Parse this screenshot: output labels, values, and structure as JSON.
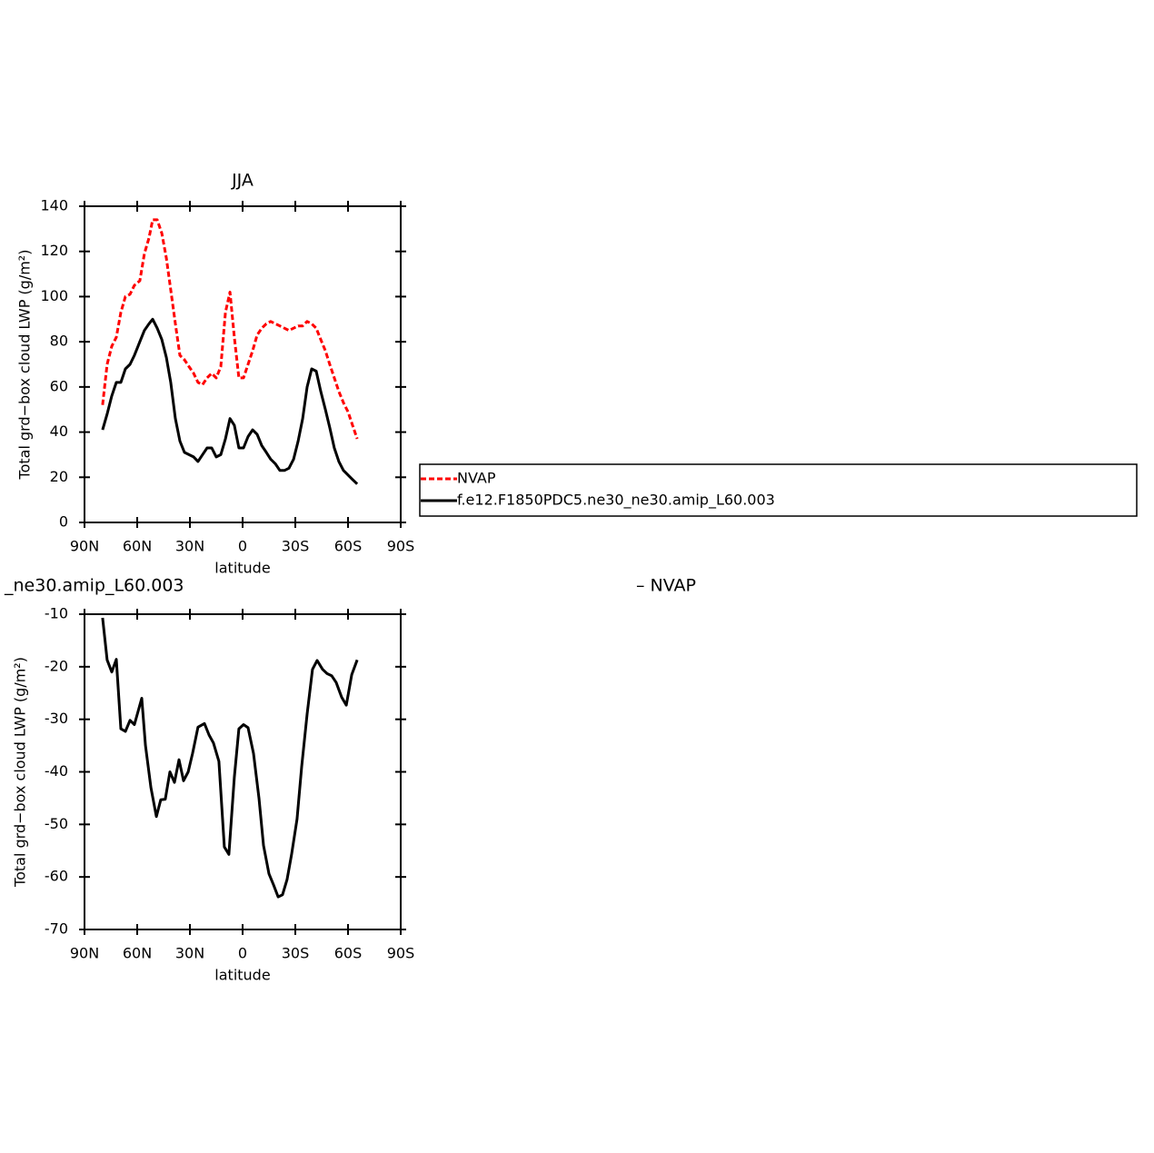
{
  "chart_data": [
    {
      "type": "line",
      "title": "JJA",
      "xlabel": "latitude",
      "ylabel": "Total grd−box cloud LWP (g/m²)",
      "x": [
        79.7,
        77.1,
        74.5,
        71.9,
        69.3,
        66.7,
        64.1,
        61.6,
        58.5,
        55.9,
        53.3,
        51.2,
        48.6,
        46.0,
        43.4,
        40.9,
        38.3,
        35.7,
        33.1,
        30.5,
        27.9,
        25.4,
        22.8,
        20.2,
        17.6,
        15.0,
        12.4,
        9.8,
        7.2,
        4.7,
        2.1,
        -0.5,
        -3.1,
        -5.7,
        -8.3,
        -10.9,
        -13.5,
        -16.0,
        -18.6,
        -21.2,
        -23.8,
        -26.4,
        -29.0,
        -31.6,
        -34.2,
        -36.7,
        -39.3,
        -41.9,
        -44.5,
        -47.1,
        -49.6,
        -52.2,
        -54.8,
        -57.4,
        -60.0,
        -62.6,
        -65.2
      ],
      "series": [
        {
          "name": "NVAP",
          "color": "#ff0000",
          "line_style": "dashed",
          "values": [
            52,
            70,
            78,
            82,
            93,
            100,
            101,
            105,
            107,
            119,
            126,
            134,
            134,
            128,
            117,
            103,
            88,
            74,
            72,
            69,
            66,
            62,
            61,
            64,
            66,
            64,
            69,
            93,
            102,
            82,
            64,
            64,
            70,
            76,
            83,
            86,
            88,
            89,
            88,
            87,
            86,
            85,
            86,
            87,
            87,
            89,
            88,
            86,
            81,
            76,
            70,
            64,
            58,
            53,
            49,
            43,
            37
          ]
        },
        {
          "name": "f.e12.F1850PDC5.ne30_ne30.amip_L60.003",
          "color": "#000000",
          "line_style": "solid",
          "values": [
            41,
            48,
            56,
            62,
            62,
            68,
            70,
            74,
            80,
            85,
            88,
            90,
            86,
            81,
            73,
            62,
            46,
            36,
            31,
            30,
            29,
            27,
            30,
            33,
            33,
            29,
            30,
            37,
            46,
            43,
            33,
            33,
            38,
            41,
            39,
            34,
            31,
            28,
            26,
            23,
            23,
            24,
            28,
            36,
            46,
            60,
            68,
            67,
            58,
            50,
            42,
            33,
            27,
            23,
            21,
            19,
            17
          ]
        }
      ],
      "xlim": [
        90,
        -90
      ],
      "xticks": [
        {
          "value": 90,
          "label": "90N"
        },
        {
          "value": 60,
          "label": "60N"
        },
        {
          "value": 30,
          "label": "30N"
        },
        0,
        {
          "value": -30,
          "label": "30S"
        },
        {
          "value": -60,
          "label": "60S"
        },
        {
          "value": -90,
          "label": "90S"
        }
      ],
      "ylim": [
        0,
        140
      ],
      "yticks": [
        0,
        20,
        40,
        60,
        80,
        100,
        120,
        140
      ],
      "legend": "right"
    },
    {
      "type": "line",
      "title_left": "_ne30.amip_L60.003",
      "title_right": "– NVAP",
      "xlabel": "latitude",
      "ylabel": "Total grd−box cloud LWP (g/m²)",
      "x": [
        79.7,
        77.1,
        74.5,
        71.9,
        69.3,
        66.7,
        64.1,
        61.6,
        57.4,
        55.3,
        52.2,
        49.1,
        46.6,
        44.0,
        41.4,
        38.8,
        36.2,
        33.6,
        31.0,
        28.5,
        25.4,
        21.7,
        19.1,
        16.6,
        13.5,
        10.4,
        7.8,
        4.7,
        2.1,
        -0.5,
        -3.1,
        -6.2,
        -9.3,
        -11.9,
        -15.0,
        -17.6,
        -20.2,
        -22.7,
        -25.3,
        -27.9,
        -31.0,
        -33.6,
        -36.7,
        -39.8,
        -42.4,
        -45.5,
        -48.1,
        -50.7,
        -53.3,
        -56.4,
        -59.0,
        -62.1,
        -65.2
      ],
      "series": [
        {
          "color": "#000000",
          "line_style": "solid",
          "values": [
            -10.7,
            -18.7,
            -21.0,
            -18.6,
            -31.8,
            -32.3,
            -30.2,
            -31.0,
            -26.0,
            -35.0,
            -43.0,
            -48.5,
            -45.3,
            -45.2,
            -40.0,
            -42.0,
            -37.7,
            -41.7,
            -40.0,
            -36.5,
            -31.5,
            -30.8,
            -33.0,
            -34.5,
            -38.0,
            -54.3,
            -55.7,
            -41.0,
            -31.8,
            -31.0,
            -31.6,
            -36.5,
            -45.0,
            -54.0,
            -59.4,
            -61.5,
            -63.8,
            -63.4,
            -60.5,
            -55.7,
            -49.0,
            -39.0,
            -29.0,
            -20.5,
            -18.8,
            -20.5,
            -21.3,
            -21.7,
            -23.0,
            -25.8,
            -27.3,
            -21.5,
            -18.7
          ]
        }
      ],
      "xlim": [
        90,
        -90
      ],
      "xticks": [
        {
          "value": 90,
          "label": "90N"
        },
        {
          "value": 60,
          "label": "60N"
        },
        {
          "value": 30,
          "label": "30N"
        },
        0,
        {
          "value": -30,
          "label": "30S"
        },
        {
          "value": -60,
          "label": "60S"
        },
        {
          "value": -90,
          "label": "90S"
        }
      ],
      "ylim": [
        -70,
        -10
      ],
      "yticks": [
        -70,
        -60,
        -50,
        -40,
        -30,
        -20,
        -10
      ]
    }
  ]
}
